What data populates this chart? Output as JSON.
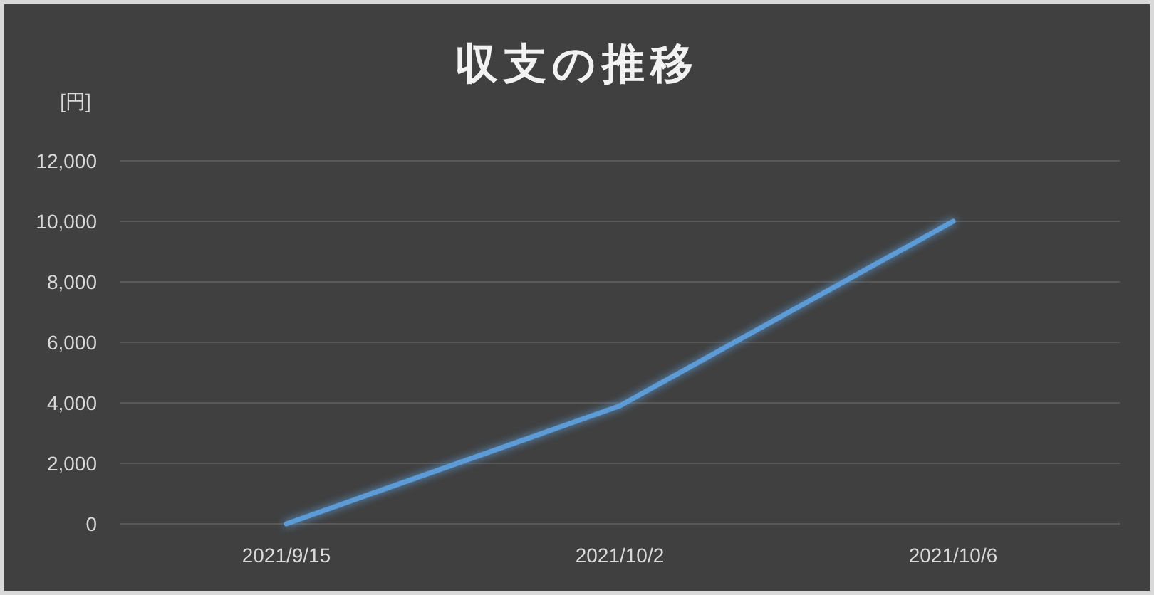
{
  "chart_data": {
    "type": "line",
    "title": "収支の推移",
    "ylabel": "[円]",
    "categories": [
      "2021/9/15",
      "2021/10/2",
      "2021/10/6"
    ],
    "series": [
      {
        "color": "#5b9bd5",
        "values": [
          0,
          3900,
          10000
        ]
      }
    ],
    "ylim": [
      0,
      12000
    ],
    "yticks": [
      {
        "value": 0,
        "label": "0"
      },
      {
        "value": 2000,
        "label": "2,000"
      },
      {
        "value": 4000,
        "label": "4,000"
      },
      {
        "value": 6000,
        "label": "6,000"
      },
      {
        "value": 8000,
        "label": "8,000"
      },
      {
        "value": 10000,
        "label": "10,000"
      },
      {
        "value": 12000,
        "label": "12,000"
      }
    ],
    "grid": "y",
    "marker": "none",
    "line_style": "solid"
  }
}
